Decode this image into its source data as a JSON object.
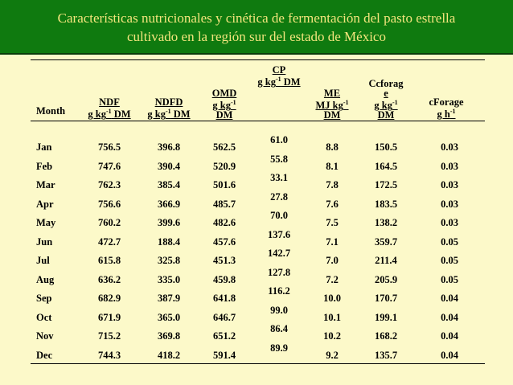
{
  "title": {
    "line1": "Características nutricionales y cinética de fermentación del pasto estrella",
    "line2": "cultivado en la región sur del estado de México"
  },
  "colors": {
    "title_bg": "#0f7a0f",
    "title_text": "#f3e57d",
    "page_bg": "#fcf9c9"
  },
  "table": {
    "headers": {
      "month": "Month",
      "ndf": {
        "name": "NDF",
        "unit_pre": "g kg",
        "unit_sup": "-1",
        "unit_post": " DM"
      },
      "ndfd": {
        "name": "NDFD",
        "unit_pre": "g kg",
        "unit_sup": "-1",
        "unit_post": " DM"
      },
      "omd": {
        "name": "OMD",
        "unit_pre": "g kg",
        "unit_sup": "-1",
        "unit_post": "",
        "line3": "DM"
      },
      "cp": {
        "name": "CP",
        "unit_pre": "g kg",
        "unit_sup": "-1",
        "unit_post": " DM"
      },
      "me": {
        "name": "ME",
        "unit_pre": "MJ kg",
        "unit_sup": "-1",
        "unit_post": "",
        "line3": "DM"
      },
      "ccforage": {
        "name_l1": "Ccforag",
        "name_l2": "e",
        "unit_pre": "g kg",
        "unit_sup": "-1",
        "unit_post": "",
        "line3": "DM"
      },
      "cforage": {
        "name": "cForage",
        "unit_pre": "g h",
        "unit_sup": "-1",
        "unit_post": ""
      }
    },
    "rows": [
      {
        "month": "Jan",
        "ndf": "756.5",
        "ndfd": "396.8",
        "omd": "562.5",
        "me": "8.8",
        "ccforage": "150.5",
        "cforage": "0.03"
      },
      {
        "month": "Feb",
        "ndf": "747.6",
        "ndfd": "390.4",
        "omd": "520.9",
        "me": "8.1",
        "ccforage": "164.5",
        "cforage": "0.03"
      },
      {
        "month": "Mar",
        "ndf": "762.3",
        "ndfd": "385.4",
        "omd": "501.6",
        "me": "7.8",
        "ccforage": "172.5",
        "cforage": "0.03"
      },
      {
        "month": "Apr",
        "ndf": "756.6",
        "ndfd": "366.9",
        "omd": "485.7",
        "me": "7.6",
        "ccforage": "183.5",
        "cforage": "0.03"
      },
      {
        "month": "May",
        "ndf": "760.2",
        "ndfd": "399.6",
        "omd": "482.6",
        "me": "7.5",
        "ccforage": "138.2",
        "cforage": "0.03"
      },
      {
        "month": "Jun",
        "ndf": "472.7",
        "ndfd": "188.4",
        "omd": "457.6",
        "me": "7.1",
        "ccforage": "359.7",
        "cforage": "0.05"
      },
      {
        "month": "Jul",
        "ndf": "615.8",
        "ndfd": "325.8",
        "omd": "451.3",
        "me": "7.0",
        "ccforage": "211.4",
        "cforage": "0.05"
      },
      {
        "month": "Aug",
        "ndf": "636.2",
        "ndfd": "335.0",
        "omd": "459.8",
        "me": "7.2",
        "ccforage": "205.9",
        "cforage": "0.05"
      },
      {
        "month": "Sep",
        "ndf": "682.9",
        "ndfd": "387.9",
        "omd": "641.8",
        "me": "10.0",
        "ccforage": "170.7",
        "cforage": "0.04"
      },
      {
        "month": "Oct",
        "ndf": "671.9",
        "ndfd": "365.0",
        "omd": "646.7",
        "me": "10.1",
        "ccforage": "199.1",
        "cforage": "0.04"
      },
      {
        "month": "Nov",
        "ndf": "715.2",
        "ndfd": "369.8",
        "omd": "651.2",
        "me": "10.2",
        "ccforage": "168.2",
        "cforage": "0.04"
      },
      {
        "month": "Dec",
        "ndf": "744.3",
        "ndfd": "418.2",
        "omd": "591.4",
        "me": "9.2",
        "ccforage": "135.7",
        "cforage": "0.04"
      }
    ],
    "cp_values": [
      "61.0",
      "55.8",
      "33.1",
      "27.8",
      "70.0",
      "137.6",
      "142.7",
      "127.8",
      "116.2",
      "99.0",
      "86.4",
      "89.9"
    ]
  }
}
